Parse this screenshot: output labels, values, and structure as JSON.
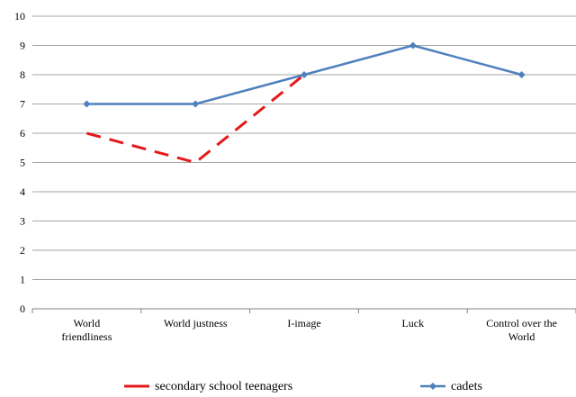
{
  "chart_data": {
    "type": "line",
    "categories": [
      "World friendliness",
      "World justness",
      "I-image",
      "Luck",
      "Control over the World"
    ],
    "ylim": [
      0,
      10
    ],
    "yticks": [
      0,
      1,
      2,
      3,
      4,
      5,
      6,
      7,
      8,
      9,
      10
    ],
    "grid": true,
    "legend_position": "bottom",
    "series": [
      {
        "name": "secondary school teenagers",
        "values": [
          6,
          5,
          8,
          null,
          null
        ],
        "color": "#e31a1c",
        "style": "dashed"
      },
      {
        "name": "cadets",
        "values": [
          7,
          7,
          8,
          9,
          8
        ],
        "color": "#4f81bd",
        "style": "solid-diamond"
      }
    ]
  }
}
